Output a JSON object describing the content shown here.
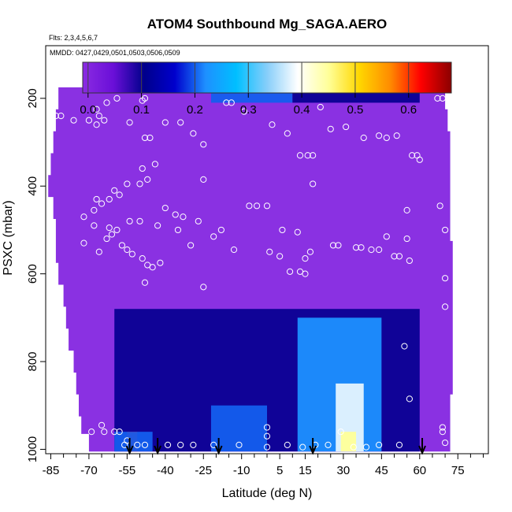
{
  "chart_data": {
    "type": "heatmap",
    "title": "ATOM4 Southbound Mg_SAGA.AERO",
    "subtitle_flights": "Flts: 2,3,4,5,6,7",
    "subtitle_dates": "MMDD: 0427,0429,0501,0503,0506,0509",
    "xlabel": "Latitude (deg N)",
    "ylabel": "PSXC (mbar)",
    "xlim": [
      -87,
      87
    ],
    "ylim": [
      1010,
      80
    ],
    "x_ticks": [
      -85,
      -70,
      -55,
      -40,
      -25,
      -10,
      5,
      15,
      30,
      45,
      60,
      75
    ],
    "x_minor_ticks": [
      -80,
      -75,
      -65,
      -60,
      -50,
      -45,
      -35,
      -30,
      -20,
      -15,
      -5,
      0,
      10,
      20,
      25,
      35,
      40,
      50,
      55,
      65,
      70,
      80,
      85
    ],
    "y_ticks": [
      200,
      400,
      600,
      800,
      1000
    ],
    "colorbar": {
      "min": -0.01,
      "max": 0.68,
      "ticks": [
        0.0,
        0.1,
        0.2,
        0.3,
        0.4,
        0.5,
        0.6
      ],
      "tick_labels": [
        "0.0",
        "0.1",
        "0.2",
        "0.3",
        "0.4",
        "0.5",
        "0.6"
      ],
      "color_stops": [
        "#8a2be2",
        "#6a0fd8",
        "#00008b",
        "#0000cd",
        "#1e90ff",
        "#00bfff",
        "#87cefa",
        "#ffffff",
        "#ffff99",
        "#ffd700",
        "#ff8c00",
        "#ff0000",
        "#8b0000"
      ]
    },
    "pressure_bands": [
      {
        "p_top": 175,
        "p_bot": 225,
        "lat_min": -82,
        "lat_max": 70
      },
      {
        "p_top": 225,
        "p_bot": 275,
        "lat_min": -83,
        "lat_max": 71
      },
      {
        "p_top": 275,
        "p_bot": 325,
        "lat_min": -84,
        "lat_max": 72
      },
      {
        "p_top": 325,
        "p_bot": 375,
        "lat_min": -85,
        "lat_max": 72
      },
      {
        "p_top": 375,
        "p_bot": 425,
        "lat_min": -86,
        "lat_max": 72
      },
      {
        "p_top": 425,
        "p_bot": 475,
        "lat_min": -84,
        "lat_max": 72
      },
      {
        "p_top": 475,
        "p_bot": 525,
        "lat_min": -83,
        "lat_max": 72
      },
      {
        "p_top": 525,
        "p_bot": 575,
        "lat_min": -83,
        "lat_max": 73
      },
      {
        "p_top": 575,
        "p_bot": 625,
        "lat_min": -82,
        "lat_max": 73
      },
      {
        "p_top": 625,
        "p_bot": 675,
        "lat_min": -80,
        "lat_max": 73
      },
      {
        "p_top": 675,
        "p_bot": 725,
        "lat_min": -79,
        "lat_max": 73
      },
      {
        "p_top": 725,
        "p_bot": 775,
        "lat_min": -78,
        "lat_max": 73
      },
      {
        "p_top": 775,
        "p_bot": 825,
        "lat_min": -76,
        "lat_max": 73
      },
      {
        "p_top": 825,
        "p_bot": 875,
        "lat_min": -75,
        "lat_max": 73
      },
      {
        "p_top": 875,
        "p_bot": 925,
        "lat_min": -74,
        "lat_max": 72
      },
      {
        "p_top": 925,
        "p_bot": 965,
        "lat_min": -73,
        "lat_max": 72
      },
      {
        "p_top": 965,
        "p_bot": 1005,
        "lat_min": -70,
        "lat_max": 72
      }
    ],
    "field_features": [
      {
        "name": "background",
        "lat_range": [
          -87,
          87
        ],
        "p_range": [
          150,
          1010
        ],
        "value": 0.0
      },
      {
        "name": "upper-trop-tropics",
        "lat_range": [
          -22,
          10
        ],
        "p_range": [
          175,
          210
        ],
        "value": 0.2
      },
      {
        "name": "upper-trop-tropics-east",
        "lat_range": [
          10,
          60
        ],
        "p_range": [
          175,
          210
        ],
        "value": 0.1
      },
      {
        "name": "lower-trop-band",
        "lat_range": [
          -60,
          60
        ],
        "p_range": [
          680,
          1005
        ],
        "value": 0.1
      },
      {
        "name": "tropical-north-bl",
        "lat_range": [
          12,
          45
        ],
        "p_range": [
          700,
          1005
        ],
        "value": 0.22
      },
      {
        "name": "tropical-north-core",
        "lat_range": [
          27,
          38
        ],
        "p_range": [
          850,
          1005
        ],
        "value": 0.38
      },
      {
        "name": "tropical-north-peak",
        "lat_range": [
          29,
          35
        ],
        "p_range": [
          960,
          1005
        ],
        "value": 0.45
      },
      {
        "name": "southern-midlat-bl",
        "lat_range": [
          -22,
          0
        ],
        "p_range": [
          900,
          1005
        ],
        "value": 0.2
      },
      {
        "name": "southern-ocean-peak",
        "lat_range": [
          -55,
          -51
        ],
        "p_range": [
          960,
          1005
        ],
        "value": 0.62
      },
      {
        "name": "southern-ocean-bl",
        "lat_range": [
          -60,
          -45
        ],
        "p_range": [
          960,
          1005
        ],
        "value": 0.2
      }
    ],
    "dropsonde_arrows_lat": [
      -54,
      -43,
      -19,
      18,
      61
    ],
    "observation_points": [
      {
        "lat": -83,
        "p": 240
      },
      {
        "lat": -81,
        "p": 240
      },
      {
        "lat": -76,
        "p": 250
      },
      {
        "lat": -70,
        "p": 250
      },
      {
        "lat": -67,
        "p": 225
      },
      {
        "lat": -66,
        "p": 240
      },
      {
        "lat": -67,
        "p": 260
      },
      {
        "lat": -64,
        "p": 250
      },
      {
        "lat": -63,
        "p": 210
      },
      {
        "lat": -59,
        "p": 200
      },
      {
        "lat": -54,
        "p": 255
      },
      {
        "lat": -49,
        "p": 205
      },
      {
        "lat": -48,
        "p": 200
      },
      {
        "lat": -48,
        "p": 290
      },
      {
        "lat": -46,
        "p": 290
      },
      {
        "lat": -40,
        "p": 255
      },
      {
        "lat": -34,
        "p": 255
      },
      {
        "lat": -29,
        "p": 280
      },
      {
        "lat": -25,
        "p": 305
      },
      {
        "lat": -16,
        "p": 210
      },
      {
        "lat": -14,
        "p": 210
      },
      {
        "lat": -9,
        "p": 230
      },
      {
        "lat": 2,
        "p": 260
      },
      {
        "lat": 8,
        "p": 280
      },
      {
        "lat": 13,
        "p": 330
      },
      {
        "lat": 16,
        "p": 330
      },
      {
        "lat": 18,
        "p": 330
      },
      {
        "lat": 18,
        "p": 395
      },
      {
        "lat": 21,
        "p": 220
      },
      {
        "lat": 25,
        "p": 270
      },
      {
        "lat": 31,
        "p": 265
      },
      {
        "lat": 38,
        "p": 290
      },
      {
        "lat": 44,
        "p": 285
      },
      {
        "lat": 47,
        "p": 290
      },
      {
        "lat": 51,
        "p": 285
      },
      {
        "lat": 57,
        "p": 330
      },
      {
        "lat": 59,
        "p": 330
      },
      {
        "lat": 60,
        "p": 340
      },
      {
        "lat": 67,
        "p": 200
      },
      {
        "lat": 69,
        "p": 200
      },
      {
        "lat": -72,
        "p": 470
      },
      {
        "lat": -67,
        "p": 430
      },
      {
        "lat": -68,
        "p": 455
      },
      {
        "lat": -65,
        "p": 440
      },
      {
        "lat": -62,
        "p": 430
      },
      {
        "lat": -60,
        "p": 410
      },
      {
        "lat": -58,
        "p": 420
      },
      {
        "lat": -55,
        "p": 395
      },
      {
        "lat": -50,
        "p": 395
      },
      {
        "lat": -47,
        "p": 385
      },
      {
        "lat": -49,
        "p": 360
      },
      {
        "lat": -44,
        "p": 350
      },
      {
        "lat": -40,
        "p": 450
      },
      {
        "lat": -36,
        "p": 465
      },
      {
        "lat": -33,
        "p": 470
      },
      {
        "lat": -25,
        "p": 385
      },
      {
        "lat": -68,
        "p": 490
      },
      {
        "lat": -72,
        "p": 530
      },
      {
        "lat": -62,
        "p": 495
      },
      {
        "lat": -61,
        "p": 510
      },
      {
        "lat": -59,
        "p": 500
      },
      {
        "lat": -54,
        "p": 480
      },
      {
        "lat": -50,
        "p": 480
      },
      {
        "lat": -43,
        "p": 490
      },
      {
        "lat": -35,
        "p": 500
      },
      {
        "lat": -27,
        "p": 480
      },
      {
        "lat": -18,
        "p": 500
      },
      {
        "lat": -7,
        "p": 445
      },
      {
        "lat": -4,
        "p": 445
      },
      {
        "lat": 0,
        "p": 445
      },
      {
        "lat": 6,
        "p": 500
      },
      {
        "lat": 12,
        "p": 505
      },
      {
        "lat": -66,
        "p": 550
      },
      {
        "lat": -63,
        "p": 520
      },
      {
        "lat": -57,
        "p": 535
      },
      {
        "lat": -55,
        "p": 545
      },
      {
        "lat": -53,
        "p": 555
      },
      {
        "lat": -49,
        "p": 565
      },
      {
        "lat": -47,
        "p": 580
      },
      {
        "lat": -42,
        "p": 575
      },
      {
        "lat": -30,
        "p": 535
      },
      {
        "lat": -21,
        "p": 515
      },
      {
        "lat": -13,
        "p": 545
      },
      {
        "lat": 1,
        "p": 550
      },
      {
        "lat": 5,
        "p": 560
      },
      {
        "lat": 15,
        "p": 565
      },
      {
        "lat": 17,
        "p": 550
      },
      {
        "lat": 26,
        "p": 535
      },
      {
        "lat": 28,
        "p": 535
      },
      {
        "lat": 35,
        "p": 540
      },
      {
        "lat": 37,
        "p": 540
      },
      {
        "lat": 41,
        "p": 545
      },
      {
        "lat": 44,
        "p": 545
      },
      {
        "lat": 47,
        "p": 515
      },
      {
        "lat": 50,
        "p": 560
      },
      {
        "lat": 52,
        "p": 560
      },
      {
        "lat": 55,
        "p": 520
      },
      {
        "lat": 56,
        "p": 570
      },
      {
        "lat": 70,
        "p": 500
      },
      {
        "lat": -48,
        "p": 620
      },
      {
        "lat": -45,
        "p": 585
      },
      {
        "lat": -25,
        "p": 630
      },
      {
        "lat": 9,
        "p": 595
      },
      {
        "lat": 13,
        "p": 595
      },
      {
        "lat": 15,
        "p": 600
      },
      {
        "lat": 70,
        "p": 610
      },
      {
        "lat": 70,
        "p": 675
      },
      {
        "lat": 68,
        "p": 445
      },
      {
        "lat": 55,
        "p": 455
      },
      {
        "lat": 54,
        "p": 765
      },
      {
        "lat": 56,
        "p": 885
      },
      {
        "lat": -69,
        "p": 960
      },
      {
        "lat": -65,
        "p": 945
      },
      {
        "lat": -64,
        "p": 960
      },
      {
        "lat": -60,
        "p": 960
      },
      {
        "lat": -58,
        "p": 960
      },
      {
        "lat": -56,
        "p": 990
      },
      {
        "lat": -55,
        "p": 980
      },
      {
        "lat": -51,
        "p": 990
      },
      {
        "lat": -48,
        "p": 990
      },
      {
        "lat": -39,
        "p": 990
      },
      {
        "lat": -34,
        "p": 990
      },
      {
        "lat": -29,
        "p": 990
      },
      {
        "lat": -21,
        "p": 990
      },
      {
        "lat": -11,
        "p": 990
      },
      {
        "lat": 0,
        "p": 950
      },
      {
        "lat": 0,
        "p": 970
      },
      {
        "lat": 0,
        "p": 995
      },
      {
        "lat": 8,
        "p": 990
      },
      {
        "lat": 14,
        "p": 995
      },
      {
        "lat": 19,
        "p": 990
      },
      {
        "lat": 24,
        "p": 990
      },
      {
        "lat": 29,
        "p": 960
      },
      {
        "lat": 34,
        "p": 995
      },
      {
        "lat": 39,
        "p": 995
      },
      {
        "lat": 44,
        "p": 990
      },
      {
        "lat": 52,
        "p": 990
      },
      {
        "lat": 69,
        "p": 950
      },
      {
        "lat": 69,
        "p": 960
      },
      {
        "lat": 70,
        "p": 985
      }
    ]
  }
}
